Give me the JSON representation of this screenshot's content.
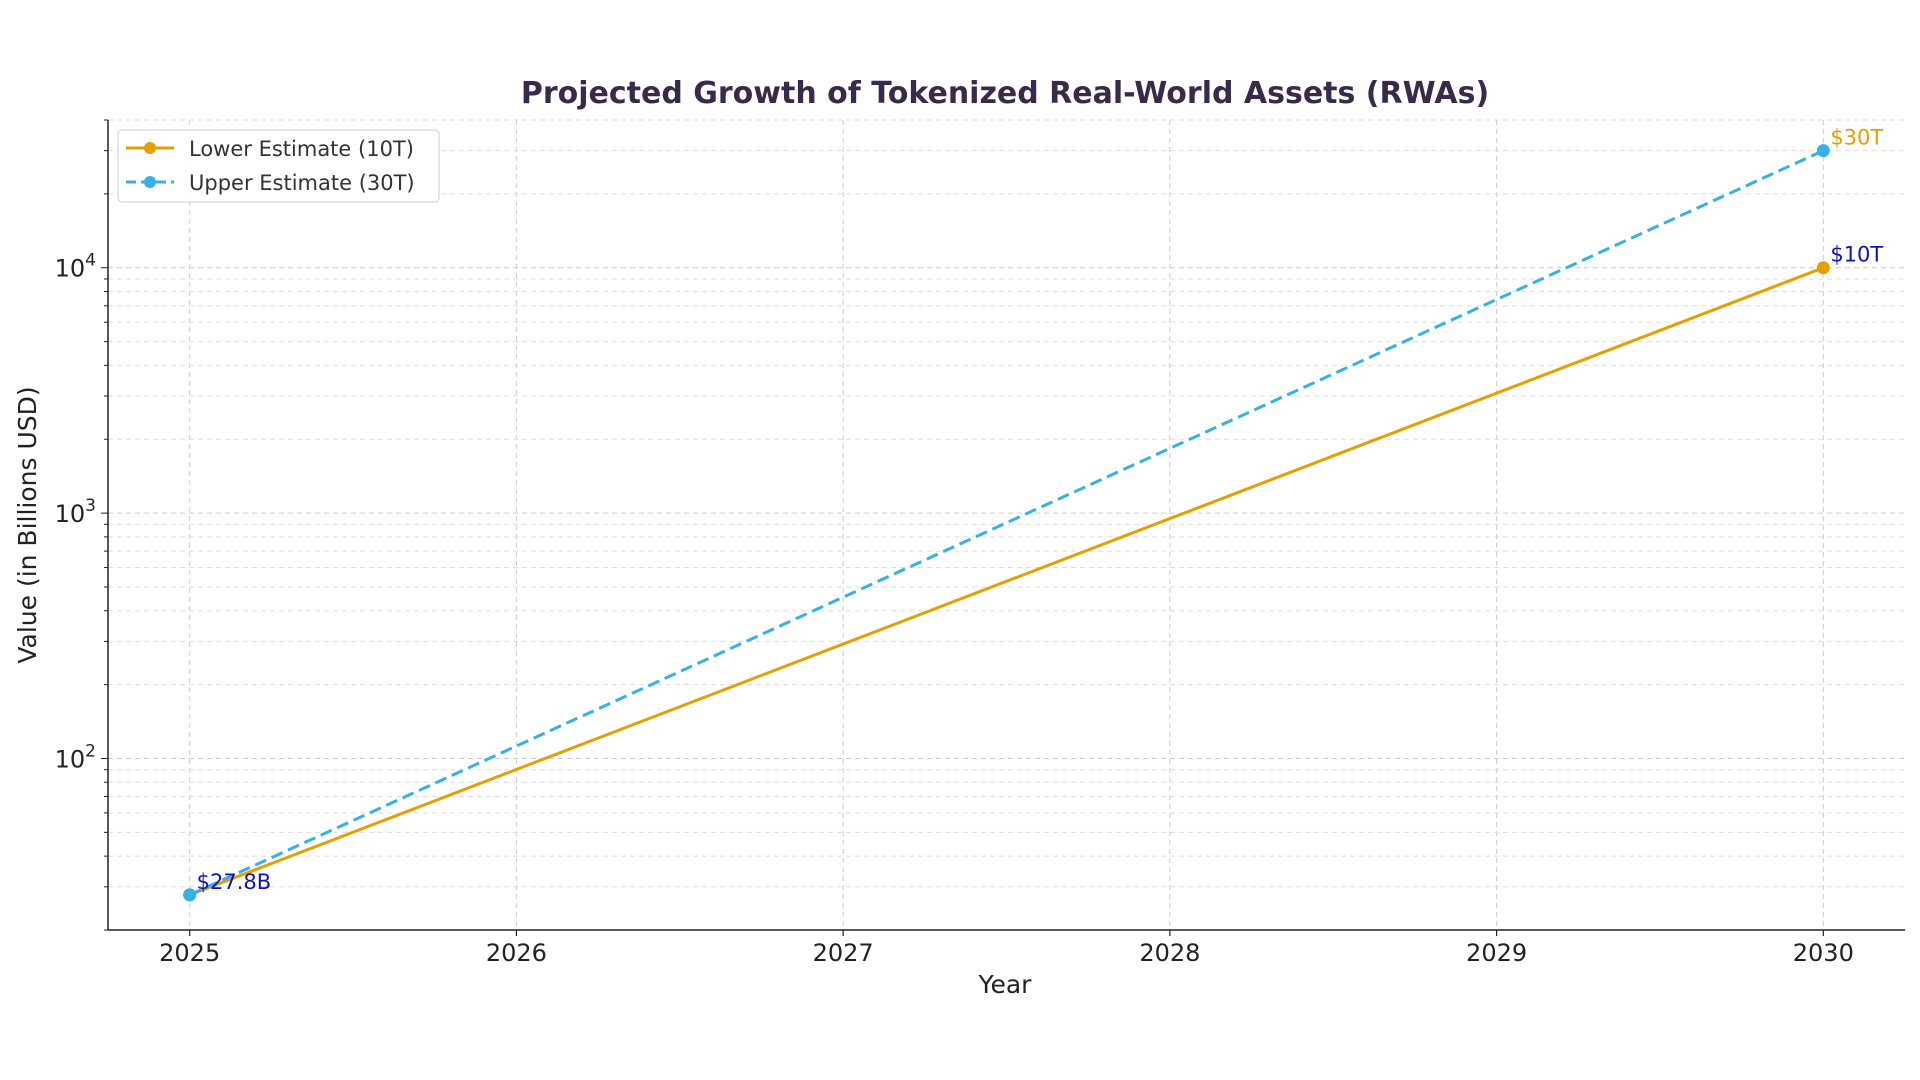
{
  "chart_data": {
    "type": "line",
    "title": "Projected Growth of Tokenized Real-World Assets (RWAs)",
    "xlabel": "Year",
    "ylabel": "Value (in Billions USD)",
    "x": [
      2025,
      2030
    ],
    "xticks": [
      "2025",
      "2026",
      "2027",
      "2028",
      "2029",
      "2030"
    ],
    "yscale": "log",
    "ylim": [
      20,
      40000
    ],
    "xlim": [
      2024.75,
      2030.25
    ],
    "yticks": [
      {
        "value": 100,
        "base": "10",
        "exp": "2"
      },
      {
        "value": 1000,
        "base": "10",
        "exp": "3"
      },
      {
        "value": 10000,
        "base": "10",
        "exp": "4"
      }
    ],
    "grid": true,
    "legend_position": "top-left",
    "series": [
      {
        "name": "Lower Estimate (10T)",
        "values": [
          27.8,
          10000
        ],
        "color": "#E69F00",
        "style": "solid",
        "marker": "circle"
      },
      {
        "name": "Upper Estimate (30T)",
        "values": [
          27.8,
          30000
        ],
        "color": "#35B1E5",
        "style": "dashed",
        "marker": "circle"
      }
    ],
    "annotations": [
      {
        "text": "$27.8B",
        "x": 2025,
        "y": 27.8,
        "color": "#1010c0"
      },
      {
        "text": "$30T",
        "x": 2030,
        "y": 30000,
        "color": "#E69F00"
      },
      {
        "text": "$10T",
        "x": 2030,
        "y": 10000,
        "color": "#1010c0"
      }
    ]
  }
}
